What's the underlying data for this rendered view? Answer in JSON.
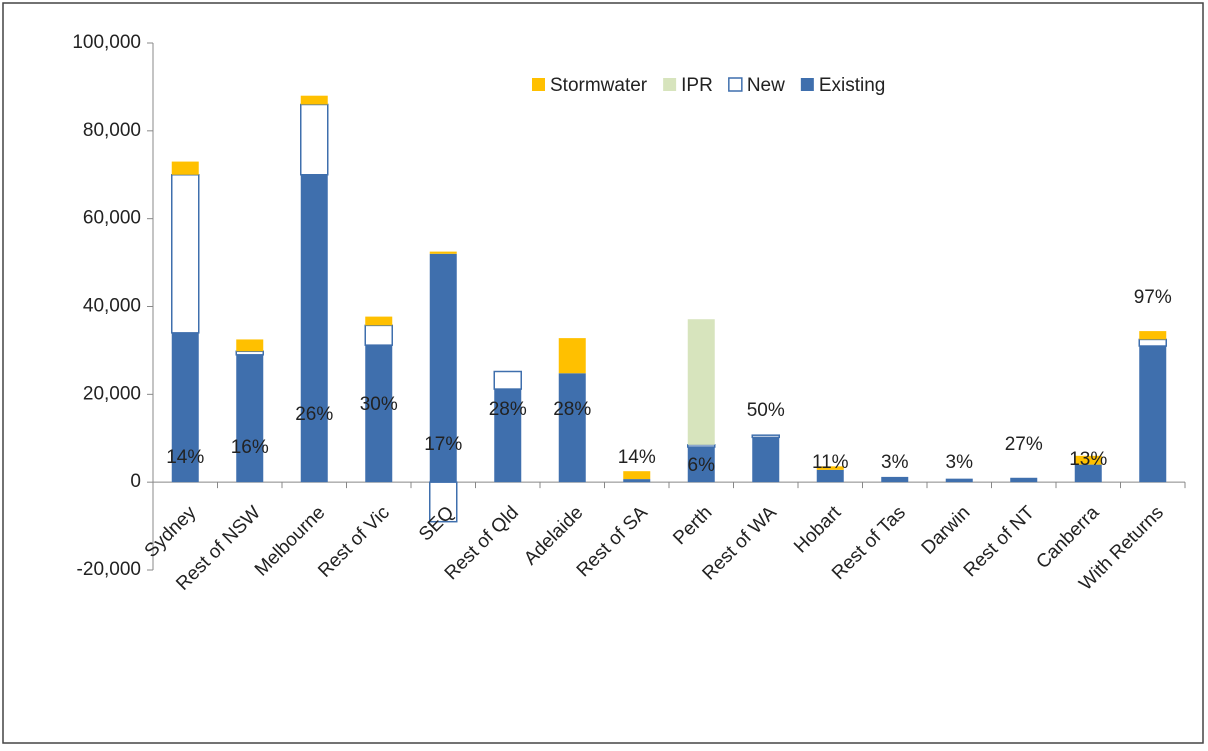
{
  "chart_data": {
    "type": "stacked_bar",
    "categories": [
      "Sydney",
      "Rest of NSW",
      "Melbourne",
      "Rest of Vic",
      "SEQ",
      "Rest of Qld",
      "Adelaide",
      "Rest of SA",
      "Perth",
      "Rest of WA",
      "Hobart",
      "Rest of Tas",
      "Darwin",
      "Rest of NT",
      "Canberra",
      "With Returns"
    ],
    "series": [
      {
        "name": "Existing",
        "color": "#3f6fad",
        "values": [
          34000,
          29000,
          70000,
          31200,
          52000,
          21200,
          24800,
          700,
          8000,
          10200,
          2800,
          1200,
          800,
          1000,
          4000,
          31000
        ]
      },
      {
        "name": "New",
        "color": "#ffffff",
        "values": [
          36000,
          800,
          16000,
          4500,
          -9000,
          4000,
          0,
          0,
          500,
          500,
          0,
          0,
          0,
          0,
          0,
          1500
        ]
      },
      {
        "name": "IPR",
        "color": "#d7e4bd",
        "values": [
          0,
          0,
          0,
          0,
          0,
          0,
          0,
          0,
          28600,
          0,
          0,
          0,
          0,
          0,
          0,
          0
        ]
      },
      {
        "name": "Stormwater",
        "color": "#ffc000",
        "values": [
          3000,
          2700,
          2000,
          2000,
          500,
          0,
          8000,
          1800,
          0,
          0,
          800,
          0,
          0,
          0,
          2000,
          1900
        ]
      }
    ],
    "annotations": [
      "14%",
      "16%",
      "26%",
      "30%",
      "17%",
      "28%",
      "28%",
      "14%",
      "6%",
      "50%",
      "11%",
      "3%",
      "3%",
      "27%",
      "13%",
      "97%"
    ],
    "ylim": [
      -20000,
      100000
    ],
    "yticks": [
      {
        "value": -20000,
        "label": "-20,000"
      },
      0,
      {
        "value": 20000,
        "label": "20,000"
      },
      {
        "value": 40000,
        "label": "40,000"
      },
      {
        "value": 60000,
        "label": "60,000"
      },
      {
        "value": 80000,
        "label": "80,000"
      },
      {
        "value": 100000,
        "label": "100,000"
      }
    ],
    "legend": "top-right",
    "grid": false
  }
}
